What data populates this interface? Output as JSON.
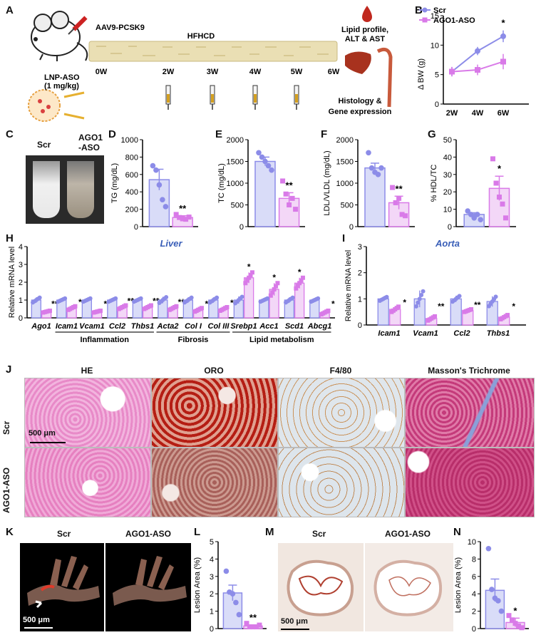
{
  "panel_labels": [
    "A",
    "B",
    "C",
    "D",
    "E",
    "F",
    "G",
    "H",
    "I",
    "J",
    "K",
    "L",
    "M",
    "N"
  ],
  "colors": {
    "scr": "#8c8ce8",
    "ago": "#d97ae8",
    "scr_fill": "#d9dcf8",
    "ago_fill": "#f3d7f7",
    "bracket": "#222222"
  },
  "panelA": {
    "injection": "AAV9-PCSK9",
    "diet": "HFHCD",
    "weeks": [
      "0W",
      "2W",
      "3W",
      "4W",
      "5W",
      "6W"
    ],
    "lnp": "LNP-ASO",
    "dose": "(1 mg/kg)",
    "outcome1": "Lipid profile,",
    "outcome2": "ALT & AST",
    "outcome3": "Histology &",
    "outcome4": "Gene expression"
  },
  "panelC": {
    "scr": "Scr",
    "ago_line1": "AGO1",
    "ago_line2": "-ASO"
  },
  "panelJ": {
    "cols": [
      "HE",
      "ORO",
      "F4/80",
      "Masson's Trichrome"
    ],
    "rows": [
      "Scr",
      "AGO1-ASO"
    ],
    "scale": "500 μm"
  },
  "panelK": {
    "scr": "Scr",
    "ago": "AGO1-ASO",
    "scale": "500 μm"
  },
  "panelM": {
    "scr": "Scr",
    "ago": "AGO1-ASO",
    "scale": "500 μm"
  },
  "chart_data": [
    {
      "panel": "B",
      "type": "line",
      "title": "",
      "xlabel": "",
      "ylabel": "Δ BW (g)",
      "categories": [
        "2W",
        "4W",
        "6W"
      ],
      "ylim": [
        0,
        15
      ],
      "yticks": [
        0,
        5,
        10,
        15
      ],
      "legend": "top",
      "sig": [
        {
          "at": "6W",
          "text": "*"
        }
      ],
      "series": [
        {
          "name": "Scr",
          "values": [
            5.5,
            9,
            11.5
          ],
          "err": [
            0.8,
            0.7,
            1.0
          ]
        },
        {
          "name": "AGO1-ASO",
          "values": [
            5.5,
            5.8,
            7.2
          ],
          "err": [
            0.8,
            0.9,
            1.3
          ]
        }
      ]
    },
    {
      "panel": "D",
      "type": "bar",
      "ylabel": "TG (mg/dL)",
      "ylim": [
        0,
        1000
      ],
      "yticks": [
        0,
        200,
        400,
        600,
        800,
        1000
      ],
      "groups": [
        {
          "name": "Scr",
          "value": 540,
          "err": 120,
          "points": [
            700,
            650,
            480,
            310,
            230
          ]
        },
        {
          "name": "AGO1-ASO",
          "value": 105,
          "err": 20,
          "points": [
            140,
            105,
            90,
            85,
            110
          ]
        }
      ],
      "sig": "**"
    },
    {
      "panel": "E",
      "type": "bar",
      "ylabel": "TC (mg/dL)",
      "ylim": [
        0,
        2000
      ],
      "yticks": [
        0,
        500,
        1000,
        1500,
        2000
      ],
      "groups": [
        {
          "name": "Scr",
          "value": 1500,
          "err": 100,
          "points": [
            1700,
            1600,
            1500,
            1400,
            1300
          ]
        },
        {
          "name": "AGO1-ASO",
          "value": 650,
          "err": 130,
          "points": [
            1050,
            750,
            500,
            650,
            400
          ]
        }
      ],
      "sig": "**"
    },
    {
      "panel": "F",
      "type": "bar",
      "ylabel": "LDL/VLDL (mg/dL)",
      "ylim": [
        0,
        2000
      ],
      "yticks": [
        0,
        500,
        1000,
        1500,
        2000
      ],
      "groups": [
        {
          "name": "Scr",
          "value": 1350,
          "err": 110,
          "points": [
            1700,
            1350,
            1250,
            1200,
            1350
          ]
        },
        {
          "name": "AGO1-ASO",
          "value": 550,
          "err": 150,
          "points": [
            900,
            550,
            650,
            280,
            250
          ]
        }
      ],
      "sig": "**"
    },
    {
      "panel": "G",
      "type": "bar",
      "ylabel": "% HDL/TC",
      "ylim": [
        0,
        50
      ],
      "yticks": [
        0,
        10,
        20,
        30,
        40,
        50
      ],
      "groups": [
        {
          "name": "Scr",
          "value": 7,
          "err": 1,
          "points": [
            9,
            7,
            5,
            7,
            4
          ]
        },
        {
          "name": "AGO1-ASO",
          "value": 22,
          "err": 7,
          "points": [
            39,
            25,
            17,
            13,
            5
          ]
        }
      ],
      "sig": "*"
    },
    {
      "panel": "H",
      "type": "bar",
      "title": "Liver",
      "ylabel": "Relative mRNA level",
      "ylim": [
        0,
        4
      ],
      "yticks": [
        0,
        1,
        2,
        3,
        4
      ],
      "genes": [
        "Ago1",
        "Icam1",
        "Vcam1",
        "Ccl2",
        "Thbs1",
        "Acta2",
        "Col I",
        "Col III",
        "Srebp1",
        "Acc1",
        "Scd1",
        "Abcg1"
      ],
      "scr": [
        1.0,
        1.0,
        1.0,
        1.0,
        1.0,
        1.0,
        1.0,
        1.0,
        1.0,
        1.0,
        1.0,
        1.0
      ],
      "scr_err": [
        0.15,
        0.1,
        0.1,
        0.1,
        0.1,
        0.18,
        0.15,
        0.15,
        0.2,
        0.1,
        0.15,
        0.1
      ],
      "ago": [
        0.35,
        0.55,
        0.35,
        0.6,
        0.6,
        0.55,
        0.45,
        0.5,
        2.25,
        1.6,
        1.95,
        0.3
      ],
      "ago_err": [
        0.05,
        0.1,
        0.05,
        0.1,
        0.1,
        0.1,
        0.1,
        0.1,
        0.3,
        0.35,
        0.3,
        0.1
      ],
      "sig": [
        "**",
        "*",
        "*",
        "**",
        "**",
        "**",
        "*",
        "*",
        "*",
        "*",
        "*",
        "*"
      ],
      "groups": [
        {
          "label": "Inflammation",
          "from": 1,
          "to": 4
        },
        {
          "label": "Fibrosis",
          "from": 5,
          "to": 7
        },
        {
          "label": "Lipid metabolism",
          "from": 8,
          "to": 11
        }
      ]
    },
    {
      "panel": "I",
      "type": "bar",
      "title": "Aorta",
      "ylabel": "Relative mRNA level",
      "ylim": [
        0,
        3
      ],
      "yticks": [
        0,
        1,
        2,
        3
      ],
      "genes": [
        "Icam1",
        "Vcam1",
        "Ccl2",
        "Thbs1"
      ],
      "scr": [
        1.0,
        1.0,
        1.0,
        0.9
      ],
      "scr_err": [
        0.08,
        0.32,
        0.12,
        0.2
      ],
      "ago": [
        0.6,
        0.25,
        0.55,
        0.3
      ],
      "ago_err": [
        0.1,
        0.08,
        0.05,
        0.08
      ],
      "sig": [
        "*",
        "**",
        "**",
        "*"
      ]
    },
    {
      "panel": "L",
      "type": "bar",
      "ylabel": "Lesion Area (%)",
      "ylim": [
        0,
        5
      ],
      "yticks": [
        0,
        1,
        2,
        3,
        4,
        5
      ],
      "groups": [
        {
          "name": "Scr",
          "value": 2.05,
          "err": 0.45,
          "points": [
            3.3,
            2.1,
            2.0,
            1.5,
            0.8
          ]
        },
        {
          "name": "AGO1-ASO",
          "value": 0.15,
          "err": 0.06,
          "points": [
            0.3,
            0.1,
            0.1,
            0.1,
            0.2
          ]
        }
      ],
      "sig": "**"
    },
    {
      "panel": "N",
      "type": "bar",
      "ylabel": "Lesion Area (%)",
      "ylim": [
        0,
        10
      ],
      "yticks": [
        0,
        2,
        4,
        6,
        8,
        10
      ],
      "groups": [
        {
          "name": "Scr",
          "value": 4.4,
          "err": 1.3,
          "points": [
            9.2,
            4.5,
            3.5,
            3.2,
            2.0
          ]
        },
        {
          "name": "AGO1-ASO",
          "value": 0.7,
          "err": 0.5,
          "points": [
            1.5,
            1.0,
            0.6,
            0.3,
            0.1
          ]
        }
      ],
      "sig": "*"
    }
  ]
}
